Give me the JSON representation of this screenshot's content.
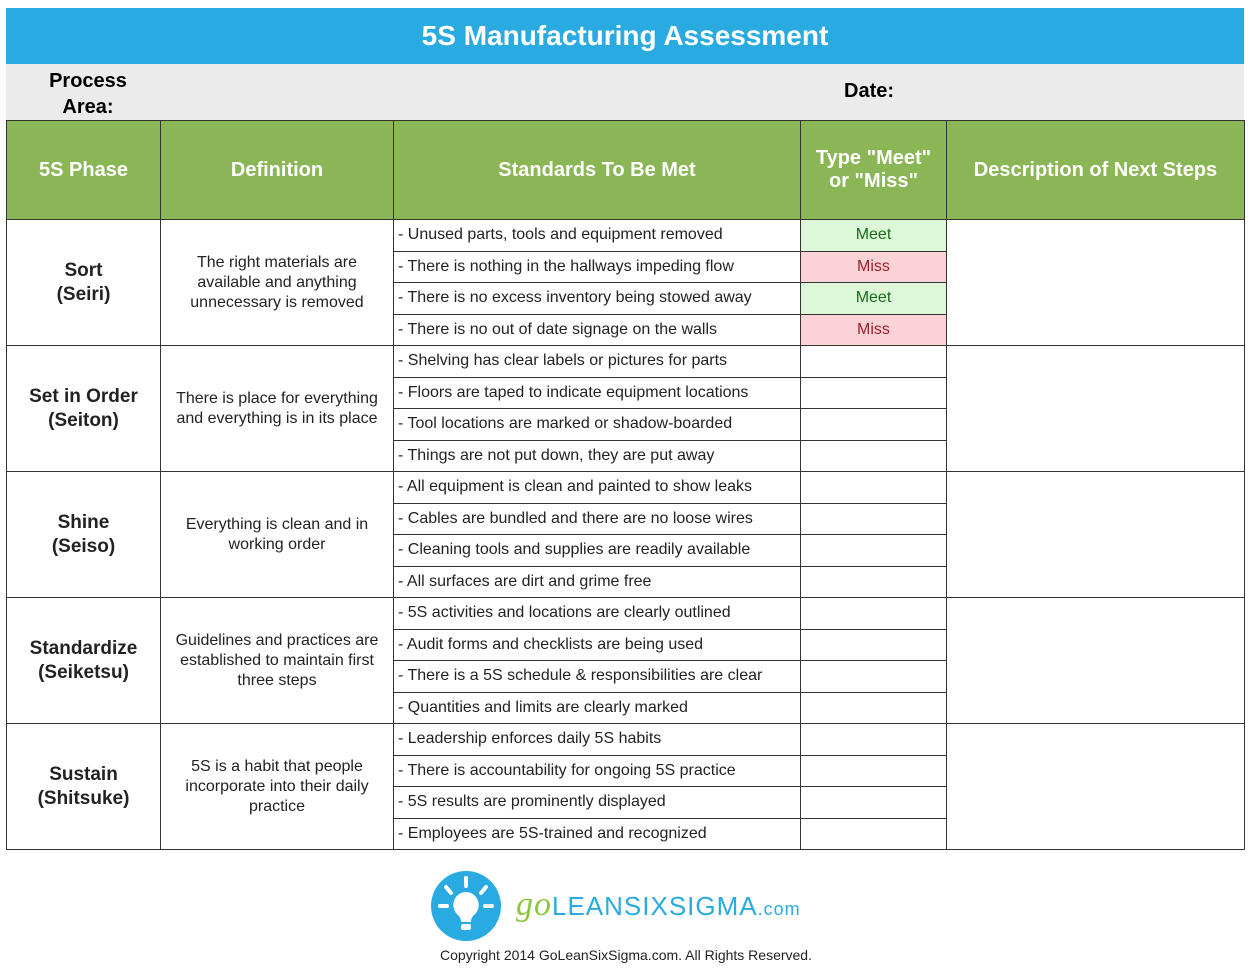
{
  "title": "5S Manufacturing Assessment",
  "info": {
    "process_area_label": "Process Area:",
    "date_label": "Date:"
  },
  "headers": [
    "5S Phase",
    "Definition",
    "Standards To Be Met",
    "Type \"Meet\" or \"Miss\"",
    "Description of Next Steps"
  ],
  "phases": [
    {
      "name": "Sort",
      "jp": "(Seiri)",
      "definition": "The right materials are available and anything unnecessary is removed",
      "standards": [
        "- Unused parts, tools and equipment removed",
        "- There is nothing in the hallways impeding flow",
        "- There is no excess inventory being stowed away",
        "- There is no out of date signage on the walls"
      ],
      "results": [
        "Meet",
        "Miss",
        "Meet",
        "Miss"
      ]
    },
    {
      "name": "Set in Order",
      "jp": "(Seiton)",
      "definition": "There is place for everything and everything is in its place",
      "standards": [
        "- Shelving has clear labels or pictures for parts",
        "- Floors are taped to indicate equipment locations",
        "- Tool locations are marked or shadow-boarded",
        "- Things are not put down, they are put away"
      ],
      "results": [
        "",
        "",
        "",
        ""
      ]
    },
    {
      "name": "Shine",
      "jp": "(Seiso)",
      "definition": "Everything is clean and in working order",
      "standards": [
        "- All equipment is clean and painted to show leaks",
        "- Cables are bundled and there are no loose wires",
        "- Cleaning tools and supplies are readily available",
        "- All surfaces are dirt and grime free"
      ],
      "results": [
        "",
        "",
        "",
        ""
      ]
    },
    {
      "name": "Standardize",
      "jp": "(Seiketsu)",
      "definition": "Guidelines and practices are established to maintain first three steps",
      "standards": [
        "- 5S activities and locations are clearly outlined",
        "- Audit forms and checklists are being used",
        "- There is a 5S schedule & responsibilities are clear",
        "- Quantities and limits are clearly marked"
      ],
      "results": [
        "",
        "",
        "",
        ""
      ]
    },
    {
      "name": "Sustain",
      "jp": "(Shitsuke)",
      "definition": "5S is a habit that people incorporate into their daily practice",
      "standards": [
        "- Leadership enforces daily 5S habits",
        "- There is accountability for ongoing 5S practice",
        "- 5S results are prominently displayed",
        "- Employees are 5S-trained and recognized"
      ],
      "results": [
        "",
        "",
        "",
        ""
      ]
    }
  ],
  "logo": {
    "go": "go",
    "name": "LEANSIXSIGMA",
    "tld": ".com"
  },
  "copyright": "Copyright 2014 GoLeanSixSigma.com. All Rights Reserved.",
  "colors": {
    "title_bar": "#29abe2",
    "header": "#8bb656",
    "meet_bg": "#dcf8d8",
    "miss_bg": "#fbd3d6"
  }
}
